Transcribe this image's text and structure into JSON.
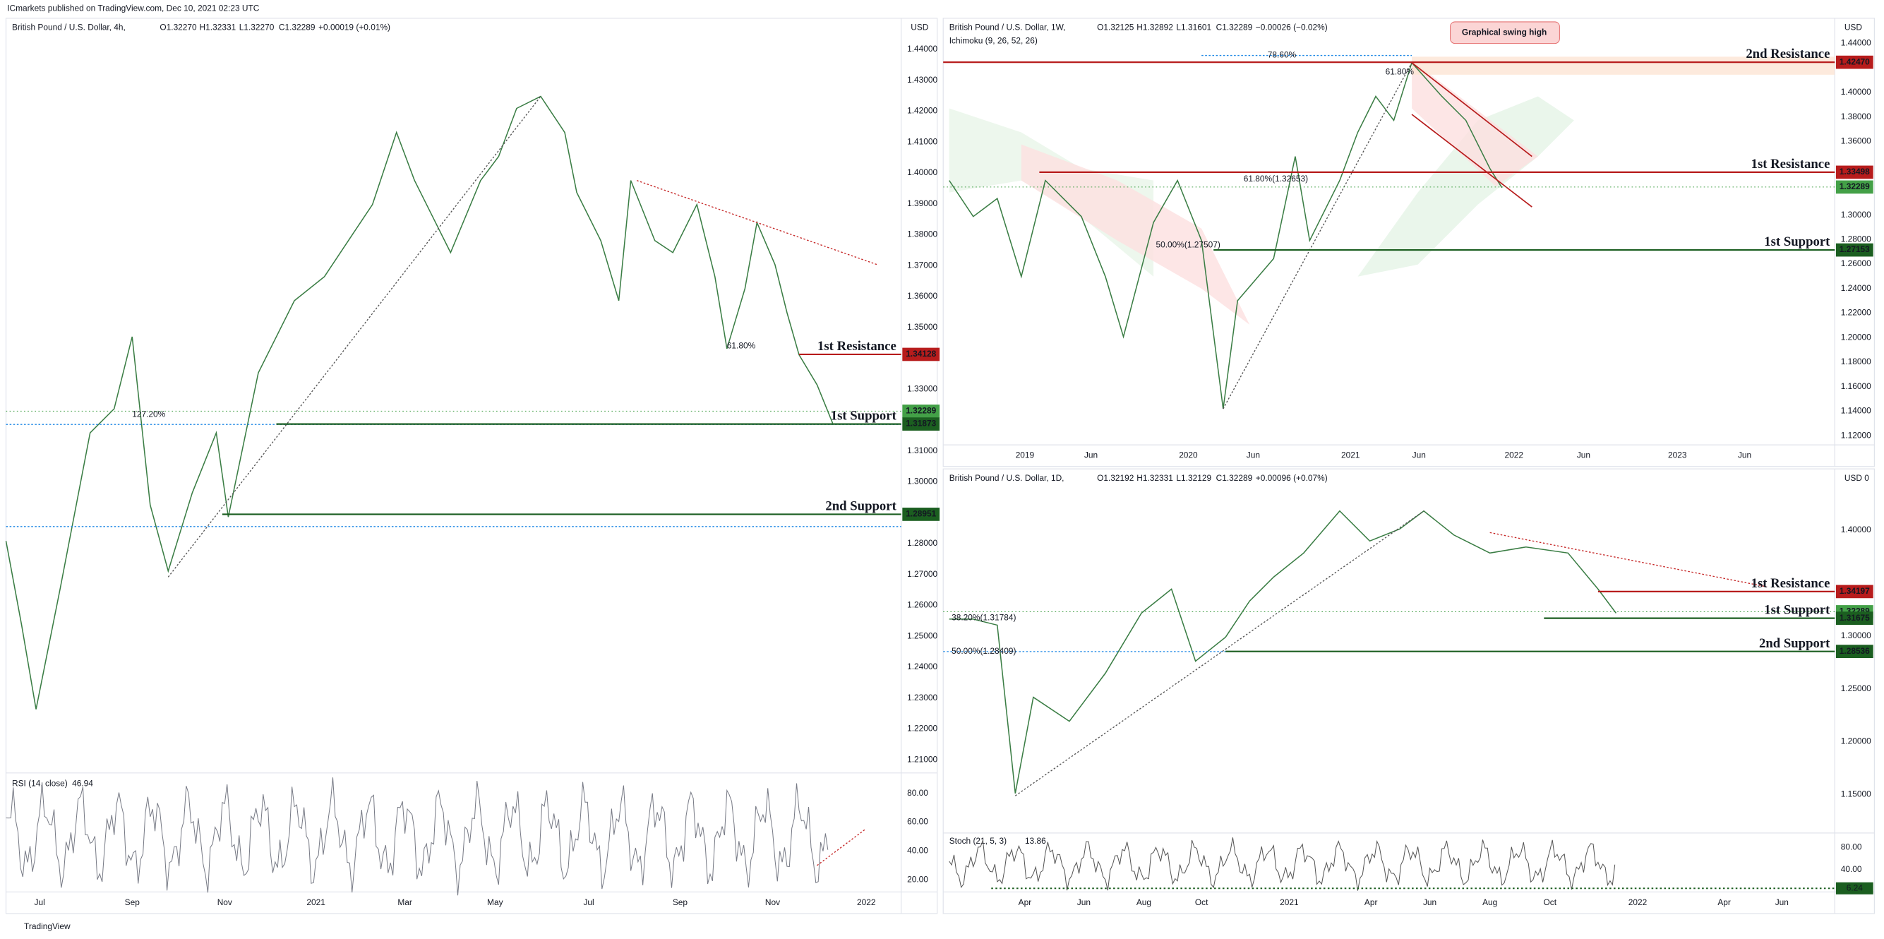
{
  "header": "ICmarkets published on TradingView.com, Dec 10, 2021 02:23 UTC",
  "footer": "TradingView",
  "panels": [
    {
      "title": "British Pound / U.S. Dollar, 4h,",
      "ohlc": [
        "O1.32270",
        "H1.32331",
        "L1.32270",
        "C1.32289",
        "+0.00019 (+0.01%)"
      ],
      "currency": "USD",
      "price_axis": [
        "1.44000",
        "1.43000",
        "1.42000",
        "1.41000",
        "1.40000",
        "1.39000",
        "1.38000",
        "1.37000",
        "1.36000",
        "1.35000",
        "1.33000",
        "1.31000",
        "1.30000",
        "1.28000",
        "1.27000",
        "1.26000",
        "1.25000",
        "1.24000",
        "1.23000",
        "1.22000",
        "1.21000"
      ],
      "levels": [
        {
          "name": "1st Resistance",
          "price": "1.34128"
        },
        {
          "price": "1.32289"
        },
        {
          "name": "1st Support",
          "price": "1.31873"
        },
        {
          "name": "2nd Support",
          "price": "1.28951"
        }
      ],
      "fib_labels": [
        "127.20%",
        "61.80%"
      ],
      "time_axis": [
        "Jul",
        "Sep",
        "Nov",
        "2021",
        "Mar",
        "May",
        "Jul",
        "Sep",
        "Nov",
        "2022"
      ],
      "indicator": {
        "name": "RSI (14, close)",
        "value": "46.94",
        "axis": [
          "80.00",
          "60.00",
          "40.00",
          "20.00"
        ]
      }
    },
    {
      "title": "British Pound / U.S. Dollar, 1W,",
      "ohlc": [
        "O1.32125",
        "H1.32892",
        "L1.31601",
        "C1.32289",
        "−0.00026 (−0.02%)"
      ],
      "currency": "USD",
      "subtitle": "Ichimoku (9, 26, 52, 26)",
      "annotation": "Graphical swing high",
      "price_axis": [
        "1.44000",
        "1.40000",
        "1.38000",
        "1.36000",
        "1.30000",
        "1.28000",
        "1.26000",
        "1.24000",
        "1.22000",
        "1.20000",
        "1.18000",
        "1.16000",
        "1.14000",
        "1.12000"
      ],
      "levels": [
        {
          "name": "2nd Resistance",
          "price": "1.42470"
        },
        {
          "name": "1st Resistance",
          "price": "1.33498"
        },
        {
          "price": "1.32289"
        },
        {
          "name": "1st Support",
          "price": "1.27153"
        }
      ],
      "fib_labels": [
        "78.60%",
        "61.80%",
        "61.80%(1.32653)",
        "50.00%(1.27507)"
      ],
      "time_axis": [
        "2019",
        "Jun",
        "2020",
        "Jun",
        "2021",
        "Jun",
        "2022",
        "Jun",
        "2023",
        "Jun"
      ]
    },
    {
      "title": "British Pound / U.S. Dollar, 1D,",
      "ohlc": [
        "O1.32192",
        "H1.32331",
        "L1.32129",
        "C1.32289",
        "+0.00096 (+0.07%)"
      ],
      "currency": "USD 0",
      "price_axis": [
        "1.40000",
        "1.30000",
        "1.25000",
        "1.20000",
        "1.15000"
      ],
      "levels": [
        {
          "name": "1st Resistance",
          "price": "1.34197"
        },
        {
          "price": "1.32289"
        },
        {
          "name": "1st Support",
          "price": "1.31675"
        },
        {
          "name": "2nd Support",
          "price": "1.28536"
        }
      ],
      "fib_labels": [
        "38.20%(1.31784)",
        "50.00%(1.28409)"
      ],
      "time_axis": [
        "Apr",
        "Jun",
        "Aug",
        "Oct",
        "2021",
        "Apr",
        "Jun",
        "Aug",
        "Oct",
        "2022",
        "Apr",
        "Jun"
      ],
      "indicator": {
        "name": "Stoch (21, 5, 3)",
        "value": "13.86",
        "axis": [
          "80.00",
          "40.00"
        ],
        "tag": "6.24"
      }
    }
  ]
}
